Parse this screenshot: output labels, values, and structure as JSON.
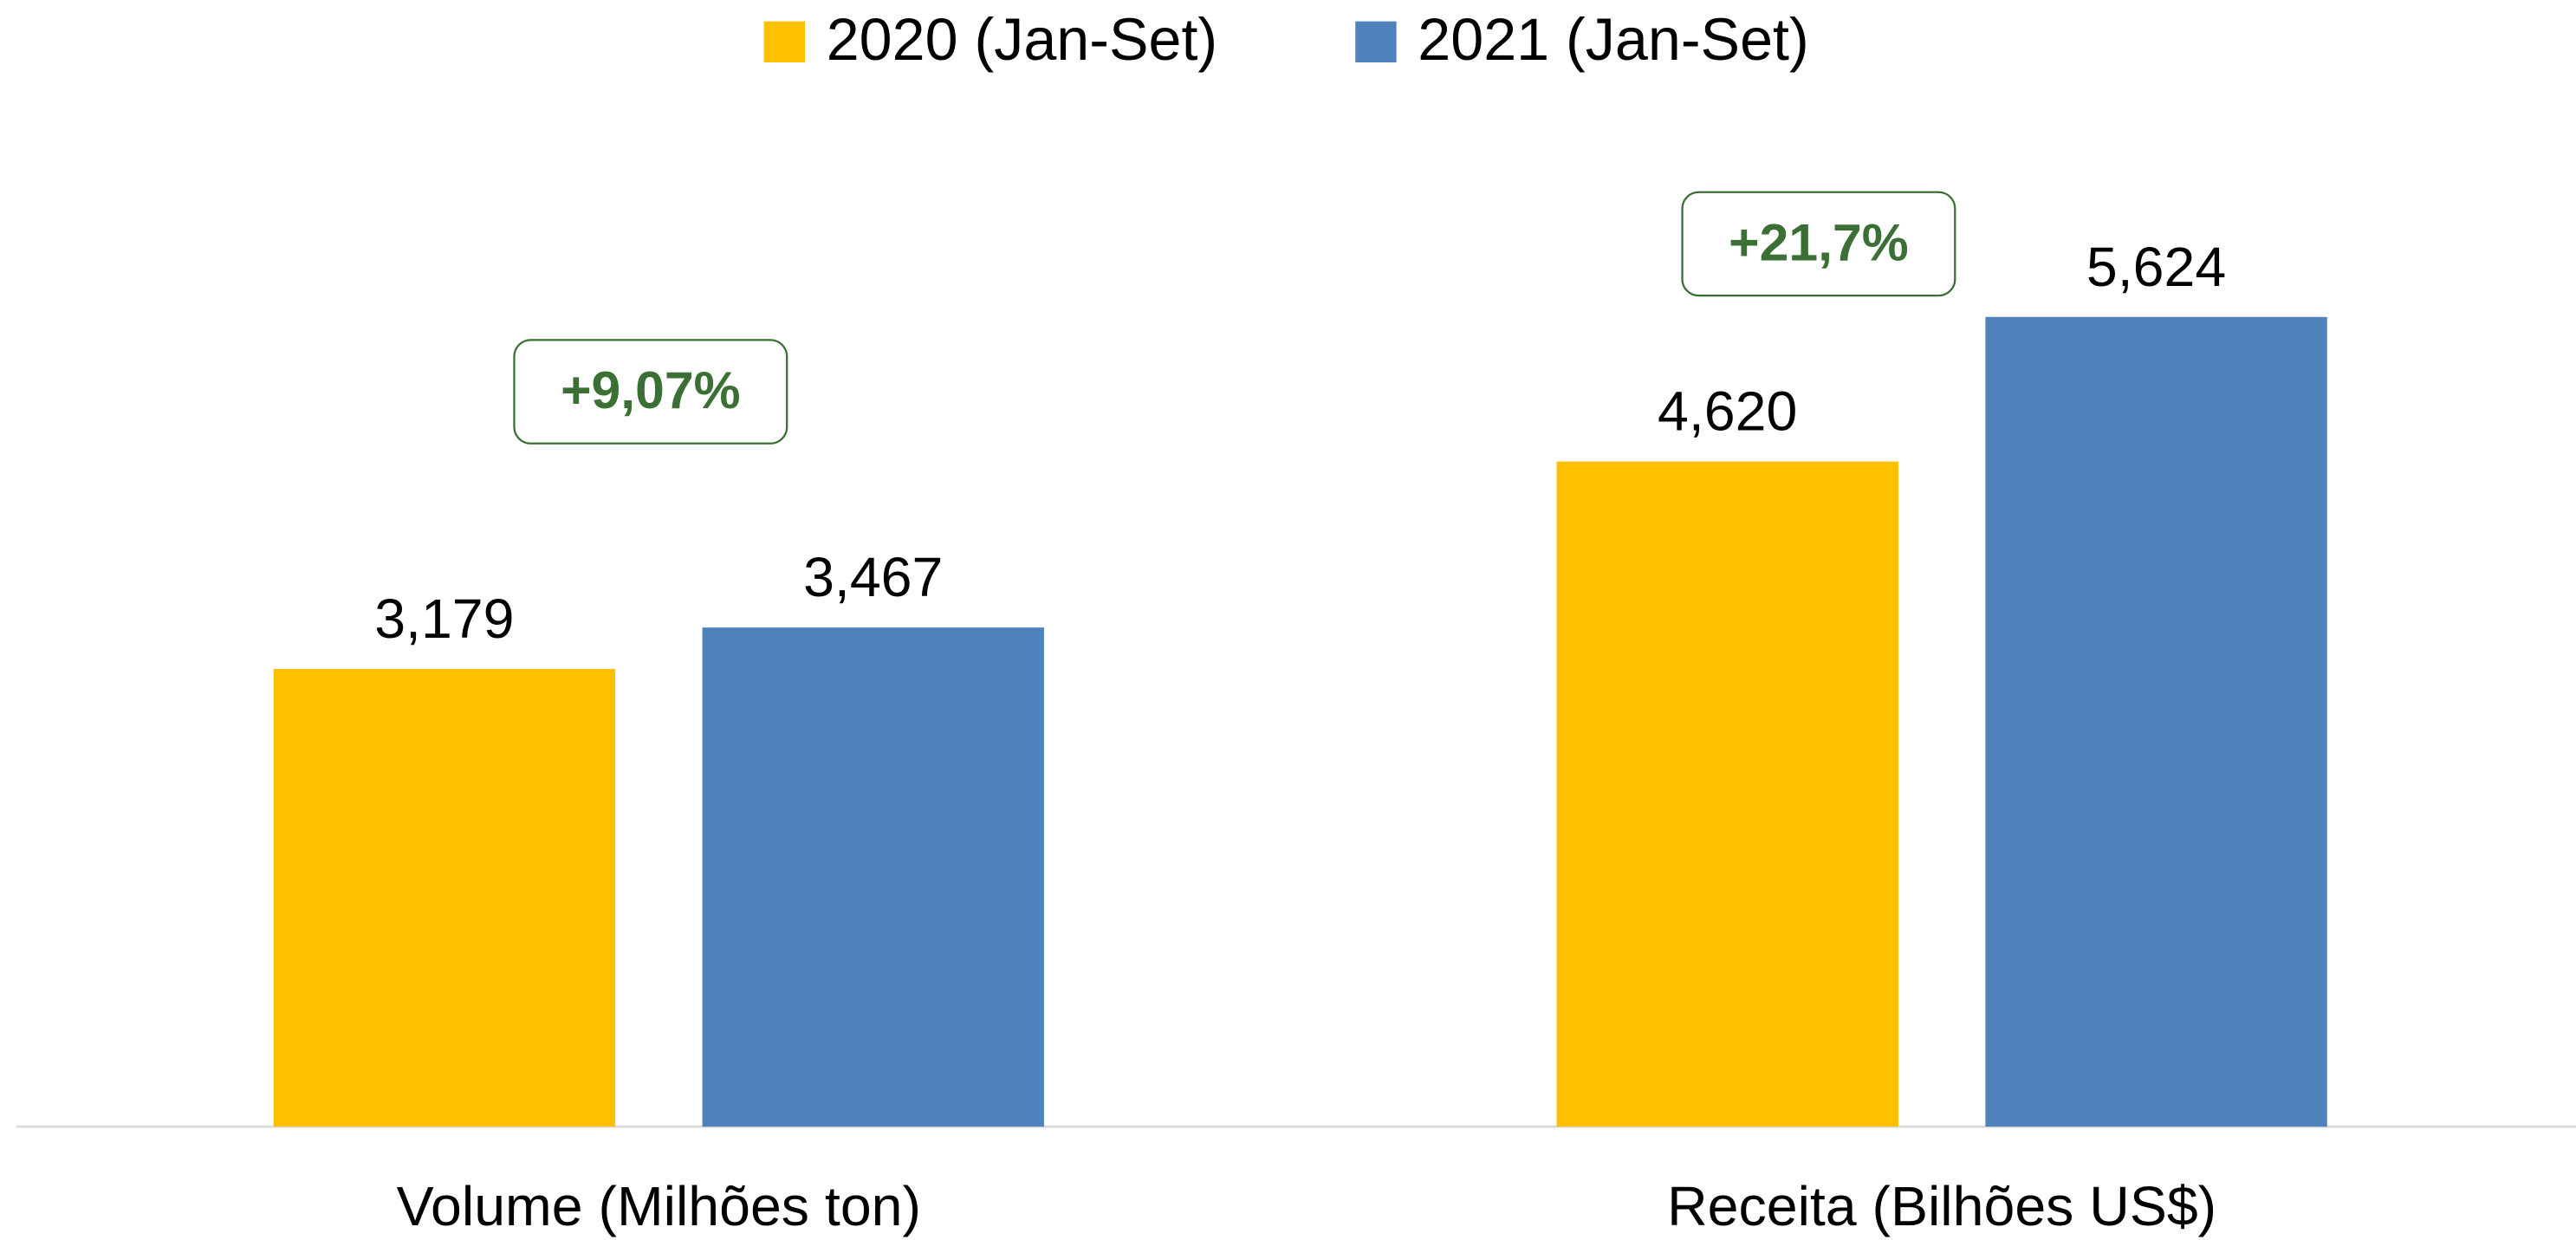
{
  "chart_data": {
    "type": "bar",
    "categories": [
      "Volume (Milhões ton)",
      "Receita (Bilhões US$)"
    ],
    "series": [
      {
        "name": "2020 (Jan-Set)",
        "color": "#ffc000",
        "values": [
          3.179,
          4.62
        ],
        "value_labels": [
          "3,179",
          "4,620"
        ]
      },
      {
        "name": "2021 (Jan-Set)",
        "color": "#4f81bd",
        "values": [
          3.467,
          5.624
        ],
        "value_labels": [
          "3,467",
          "5,624"
        ]
      }
    ],
    "annotations": [
      "+9,07%",
      "+21,7%"
    ],
    "grid": false
  }
}
